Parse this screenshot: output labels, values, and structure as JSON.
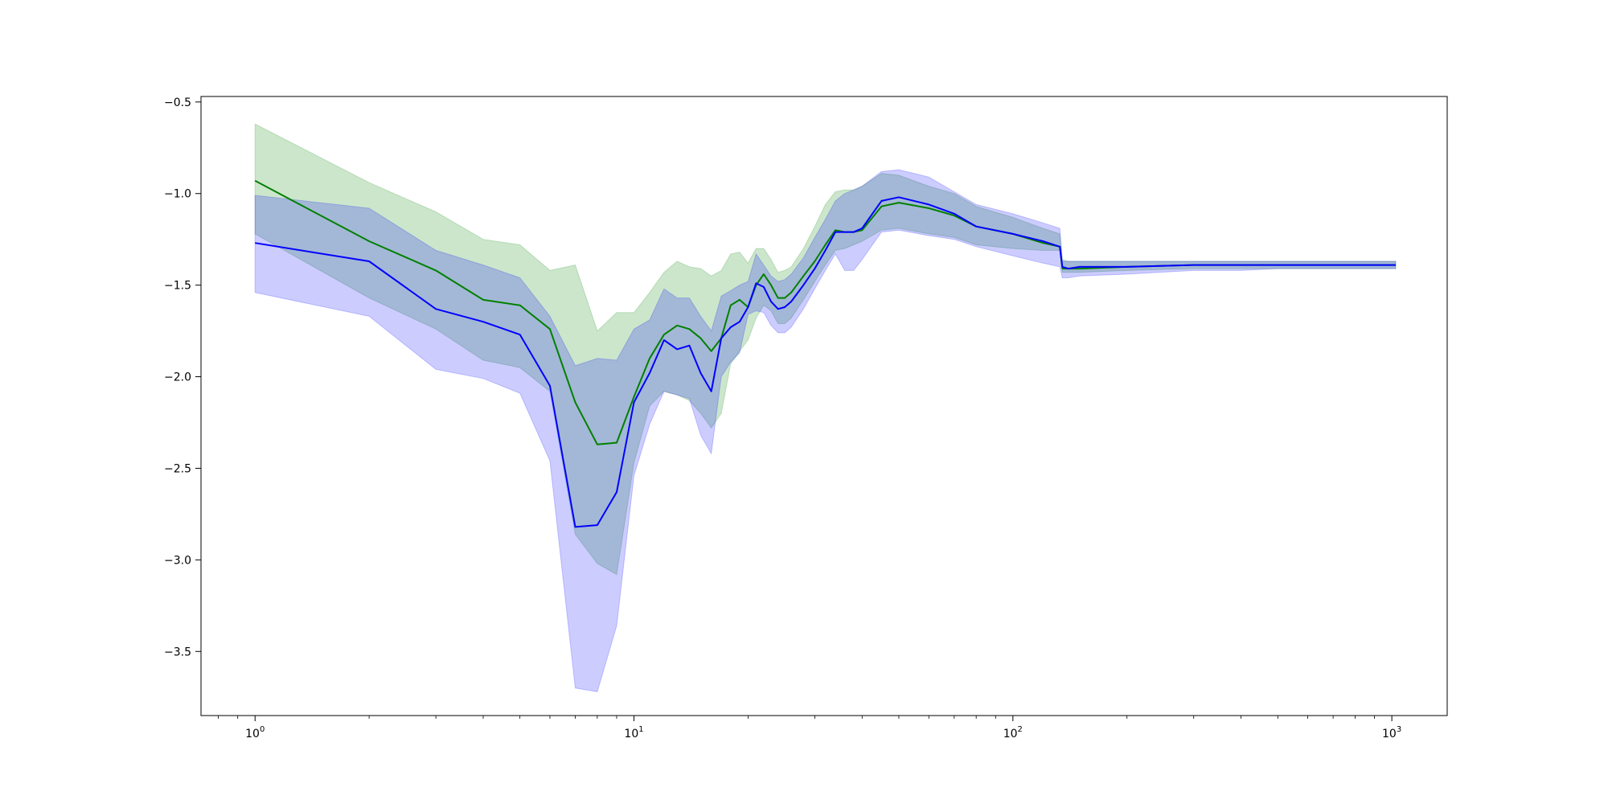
{
  "chart_data": {
    "type": "line",
    "title": "",
    "xlabel": "",
    "ylabel": "",
    "x_scale": "log",
    "xlim": [
      0.72,
      1400
    ],
    "ylim": [
      -3.85,
      -0.47
    ],
    "grid": false,
    "x_ticks": [
      {
        "value": 1,
        "base": "10",
        "exp": "0"
      },
      {
        "value": 10,
        "base": "10",
        "exp": "1"
      },
      {
        "value": 100,
        "base": "10",
        "exp": "2"
      },
      {
        "value": 1000,
        "base": "10",
        "exp": "3"
      }
    ],
    "y_ticks": [
      {
        "value": -0.5,
        "label": "−0.5"
      },
      {
        "value": -1.0,
        "label": "−1.0"
      },
      {
        "value": -1.5,
        "label": "−1.5"
      },
      {
        "value": -2.0,
        "label": "−2.0"
      },
      {
        "value": -2.5,
        "label": "−2.5"
      },
      {
        "value": -3.0,
        "label": "−3.0"
      },
      {
        "value": -3.5,
        "label": "−3.5"
      }
    ],
    "series": [
      {
        "color": "#008000",
        "band_color": "#008000",
        "band_opacity": 0.2,
        "x": [
          1,
          2,
          3,
          4,
          5,
          6,
          7,
          8,
          9,
          10,
          11,
          12,
          13,
          14,
          15,
          16,
          17,
          18,
          19,
          20,
          21,
          22,
          23,
          24,
          25,
          26,
          28,
          30,
          32,
          34,
          36,
          38,
          40,
          45,
          50,
          60,
          70,
          80,
          100,
          120,
          133,
          135,
          140,
          150,
          200,
          300,
          400,
          500,
          700,
          1000,
          1024
        ],
        "y": [
          -0.93,
          -1.26,
          -1.42,
          -1.58,
          -1.61,
          -1.74,
          -2.14,
          -2.37,
          -2.36,
          -2.11,
          -1.9,
          -1.77,
          -1.72,
          -1.74,
          -1.79,
          -1.86,
          -1.79,
          -1.61,
          -1.58,
          -1.62,
          -1.5,
          -1.44,
          -1.5,
          -1.57,
          -1.57,
          -1.54,
          -1.45,
          -1.37,
          -1.28,
          -1.2,
          -1.21,
          -1.21,
          -1.2,
          -1.07,
          -1.05,
          -1.08,
          -1.12,
          -1.18,
          -1.22,
          -1.27,
          -1.29,
          -1.41,
          -1.41,
          -1.41,
          -1.4,
          -1.39,
          -1.39,
          -1.39,
          -1.39,
          -1.39,
          -1.39
        ],
        "lower": [
          -1.22,
          -1.57,
          -1.74,
          -1.91,
          -1.95,
          -2.08,
          -2.86,
          -3.02,
          -3.08,
          -2.47,
          -2.16,
          -2.08,
          -2.1,
          -2.13,
          -2.2,
          -2.28,
          -2.2,
          -1.93,
          -1.86,
          -1.8,
          -1.68,
          -1.61,
          -1.64,
          -1.71,
          -1.71,
          -1.68,
          -1.58,
          -1.48,
          -1.39,
          -1.31,
          -1.3,
          -1.28,
          -1.26,
          -1.2,
          -1.19,
          -1.22,
          -1.24,
          -1.28,
          -1.3,
          -1.31,
          -1.31,
          -1.43,
          -1.43,
          -1.43,
          -1.42,
          -1.41,
          -1.41,
          -1.41,
          -1.41,
          -1.41,
          -1.41
        ],
        "upper": [
          -0.62,
          -0.94,
          -1.1,
          -1.25,
          -1.28,
          -1.42,
          -1.39,
          -1.75,
          -1.65,
          -1.65,
          -1.54,
          -1.43,
          -1.37,
          -1.4,
          -1.41,
          -1.45,
          -1.42,
          -1.33,
          -1.32,
          -1.38,
          -1.3,
          -1.3,
          -1.36,
          -1.43,
          -1.42,
          -1.4,
          -1.3,
          -1.18,
          -1.06,
          -0.99,
          -0.98,
          -0.98,
          -0.96,
          -0.89,
          -0.9,
          -0.96,
          -1.0,
          -1.07,
          -1.13,
          -1.19,
          -1.22,
          -1.36,
          -1.37,
          -1.37,
          -1.37,
          -1.37,
          -1.37,
          -1.37,
          -1.37,
          -1.37,
          -1.37
        ]
      },
      {
        "color": "#0000ff",
        "band_color": "#0000ff",
        "band_opacity": 0.2,
        "x": [
          1,
          2,
          3,
          4,
          5,
          6,
          7,
          8,
          9,
          10,
          11,
          12,
          13,
          14,
          15,
          16,
          17,
          18,
          19,
          20,
          21,
          22,
          23,
          24,
          25,
          26,
          28,
          30,
          32,
          34,
          36,
          38,
          40,
          45,
          50,
          60,
          70,
          80,
          100,
          120,
          133,
          135,
          140,
          150,
          200,
          300,
          400,
          500,
          700,
          1000,
          1024
        ],
        "y": [
          -1.27,
          -1.37,
          -1.63,
          -1.7,
          -1.77,
          -2.05,
          -2.82,
          -2.81,
          -2.63,
          -2.14,
          -1.98,
          -1.8,
          -1.85,
          -1.83,
          -1.98,
          -2.08,
          -1.79,
          -1.73,
          -1.7,
          -1.62,
          -1.49,
          -1.51,
          -1.59,
          -1.63,
          -1.62,
          -1.59,
          -1.5,
          -1.41,
          -1.31,
          -1.21,
          -1.21,
          -1.21,
          -1.19,
          -1.04,
          -1.02,
          -1.06,
          -1.11,
          -1.18,
          -1.22,
          -1.26,
          -1.29,
          -1.4,
          -1.41,
          -1.4,
          -1.4,
          -1.39,
          -1.39,
          -1.39,
          -1.39,
          -1.39,
          -1.39
        ],
        "lower": [
          -1.54,
          -1.67,
          -1.96,
          -2.01,
          -2.09,
          -2.46,
          -3.7,
          -3.72,
          -3.36,
          -2.54,
          -2.26,
          -2.08,
          -2.1,
          -2.12,
          -2.32,
          -2.42,
          -2.0,
          -1.92,
          -1.87,
          -1.66,
          -1.64,
          -1.65,
          -1.72,
          -1.76,
          -1.76,
          -1.73,
          -1.63,
          -1.52,
          -1.42,
          -1.33,
          -1.42,
          -1.42,
          -1.36,
          -1.21,
          -1.2,
          -1.23,
          -1.25,
          -1.29,
          -1.34,
          -1.38,
          -1.4,
          -1.46,
          -1.46,
          -1.45,
          -1.44,
          -1.42,
          -1.42,
          -1.41,
          -1.41,
          -1.41,
          -1.41
        ],
        "upper": [
          -1.01,
          -1.08,
          -1.31,
          -1.39,
          -1.46,
          -1.67,
          -1.94,
          -1.9,
          -1.91,
          -1.74,
          -1.69,
          -1.52,
          -1.57,
          -1.57,
          -1.67,
          -1.75,
          -1.56,
          -1.53,
          -1.5,
          -1.48,
          -1.33,
          -1.39,
          -1.45,
          -1.48,
          -1.47,
          -1.44,
          -1.35,
          -1.24,
          -1.14,
          -1.04,
          -1.0,
          -0.98,
          -0.96,
          -0.88,
          -0.87,
          -0.91,
          -0.99,
          -1.06,
          -1.11,
          -1.16,
          -1.19,
          -1.37,
          -1.37,
          -1.37,
          -1.37,
          -1.37,
          -1.37,
          -1.37,
          -1.37,
          -1.37,
          -1.37
        ]
      }
    ]
  }
}
